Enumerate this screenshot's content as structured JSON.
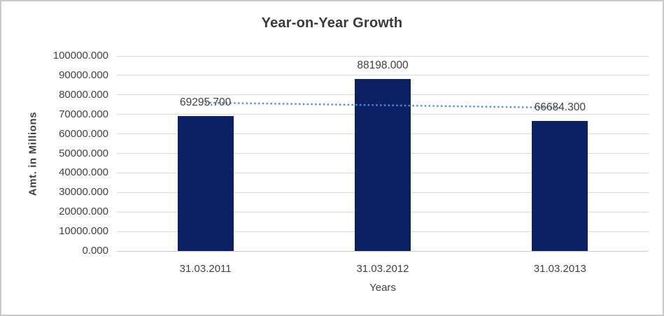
{
  "chart_data": {
    "type": "bar",
    "title": "Year-on-Year Growth",
    "xlabel": "Years",
    "ylabel": "Amt. in Millions",
    "categories": [
      "31.03.2011",
      "31.03.2012",
      "31.03.2013"
    ],
    "values": [
      69295.7,
      88198.0,
      66684.3
    ],
    "data_labels": [
      "69295.700",
      "88198.000",
      "66684.300"
    ],
    "ylim": [
      0,
      100000
    ],
    "ytick_step": 10000,
    "ytick_labels": [
      "0.000",
      "10000.000",
      "20000.000",
      "30000.000",
      "40000.000",
      "50000.000",
      "60000.000",
      "70000.000",
      "80000.000",
      "90000.000",
      "100000.000"
    ],
    "grid": true,
    "legend": false,
    "trendline": {
      "type": "linear",
      "style": "dotted",
      "start_value": 76031.7,
      "end_value": 73420.3,
      "color": "#4f90d5"
    },
    "colors": {
      "bar": "#0b2164",
      "gridline": "#d9d9d9",
      "axis_line": "#c9c9c9",
      "text": "#404040",
      "title": "#3a3a3a",
      "background": "#ffffff",
      "border": "#c9c9c9"
    }
  }
}
